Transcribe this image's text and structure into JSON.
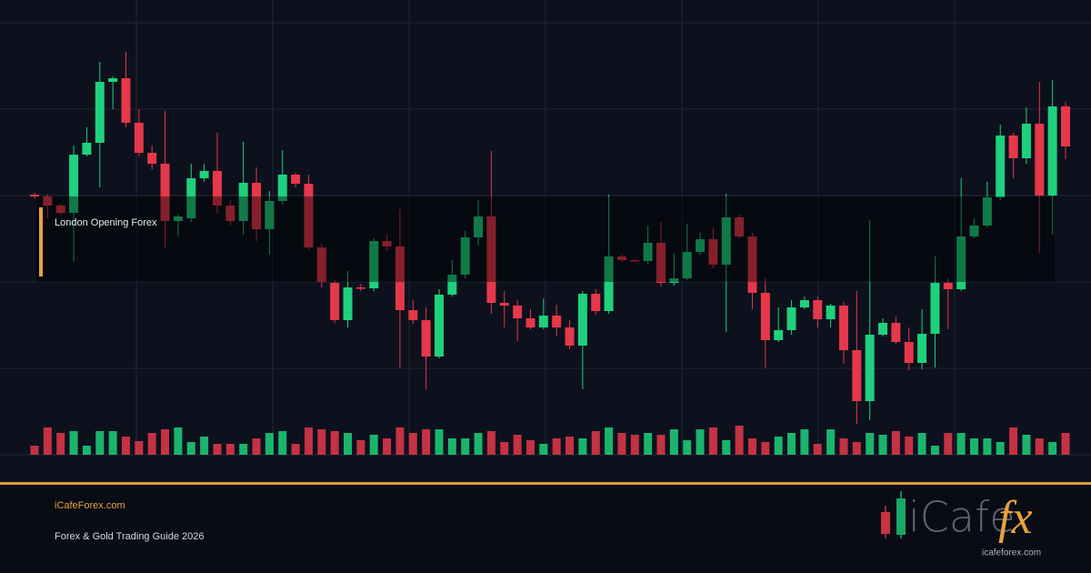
{
  "chart_data": {
    "type": "candlestick",
    "annotation": "London Opening Forex",
    "up_color": "#1ed17c",
    "down_color": "#e5384a",
    "grid": true,
    "ylim": [
      0,
      500
    ],
    "yticks": [
      0,
      95,
      190,
      285,
      380,
      475
    ],
    "open": [
      286,
      284,
      274,
      266,
      330,
      343,
      410,
      414,
      365,
      332,
      320,
      257,
      260,
      304,
      312,
      274,
      257,
      299,
      248,
      279,
      308,
      298,
      228,
      189,
      148,
      184,
      183,
      235,
      229,
      159,
      148,
      108,
      176,
      198,
      239,
      262,
      167,
      164,
      150,
      140,
      153,
      140,
      120,
      177,
      158,
      218,
      214,
      213,
      233,
      189,
      194,
      223,
      237,
      209,
      261,
      240,
      178,
      126,
      137,
      162,
      170,
      149,
      164,
      115,
      59,
      132,
      145,
      124,
      101,
      133,
      189,
      182,
      240,
      252,
      283,
      351,
      326,
      364,
      285,
      383
    ],
    "high": [
      288,
      286,
      276,
      340,
      360,
      432,
      416,
      443,
      380,
      340,
      378,
      264,
      320,
      320,
      354,
      280,
      344,
      316,
      290,
      335,
      310,
      308,
      232,
      192,
      202,
      188,
      238,
      242,
      270,
      170,
      162,
      182,
      214,
      246,
      280,
      334,
      180,
      170,
      160,
      172,
      165,
      148,
      180,
      182,
      286,
      220,
      214,
      252,
      256,
      222,
      254,
      244,
      250,
      287,
      264,
      244,
      194,
      162,
      170,
      174,
      174,
      166,
      168,
      180,
      258,
      150,
      152,
      140,
      160,
      218,
      194,
      304,
      260,
      300,
      363,
      354,
      382,
      410,
      412,
      388
    ],
    "low": [
      282,
      260,
      264,
      212,
      328,
      294,
      380,
      360,
      328,
      314,
      228,
      240,
      256,
      300,
      265,
      252,
      242,
      235,
      220,
      275,
      294,
      225,
      184,
      145,
      140,
      180,
      180,
      224,
      95,
      144,
      72,
      106,
      174,
      194,
      230,
      155,
      140,
      125,
      138,
      138,
      130,
      116,
      72,
      154,
      155,
      212,
      213,
      210,
      185,
      186,
      192,
      220,
      205,
      135,
      238,
      160,
      96,
      124,
      132,
      160,
      140,
      140,
      100,
      34,
      38,
      130,
      122,
      93,
      94,
      96,
      138,
      180,
      238,
      250,
      280,
      304,
      320,
      222,
      242,
      325
    ],
    "close": [
      284,
      274,
      266,
      330,
      343,
      410,
      414,
      365,
      332,
      320,
      257,
      262,
      304,
      312,
      274,
      257,
      299,
      248,
      279,
      308,
      298,
      228,
      190,
      148,
      184,
      183,
      235,
      229,
      159,
      148,
      108,
      176,
      198,
      239,
      262,
      167,
      164,
      150,
      140,
      153,
      140,
      120,
      177,
      158,
      218,
      214,
      213,
      233,
      189,
      194,
      223,
      237,
      209,
      261,
      240,
      178,
      126,
      137,
      162,
      170,
      149,
      164,
      115,
      59,
      132,
      145,
      124,
      101,
      133,
      189,
      182,
      240,
      252,
      283,
      351,
      326,
      364,
      285,
      383,
      339
    ],
    "volume": [
      10,
      30,
      24,
      26,
      10,
      26,
      26,
      20,
      15,
      24,
      28,
      30,
      14,
      20,
      12,
      12,
      12,
      18,
      24,
      26,
      12,
      30,
      28,
      26,
      24,
      16,
      22,
      18,
      30,
      24,
      28,
      28,
      18,
      18,
      24,
      26,
      14,
      22,
      16,
      12,
      18,
      20,
      18,
      26,
      30,
      24,
      22,
      24,
      22,
      28,
      16,
      28,
      30,
      16,
      32,
      18,
      14,
      20,
      24,
      28,
      12,
      28,
      18,
      14,
      24,
      22,
      26,
      20,
      24,
      10,
      24,
      24,
      18,
      18,
      14,
      30,
      22,
      18,
      14,
      24
    ]
  },
  "footer": {
    "site": "iCafeForex.com",
    "subtitle": "Forex & Gold Trading Guide 2026"
  },
  "logo": {
    "brand": "iCafe",
    "accent": "fx",
    "url": "icafeforex.com"
  }
}
